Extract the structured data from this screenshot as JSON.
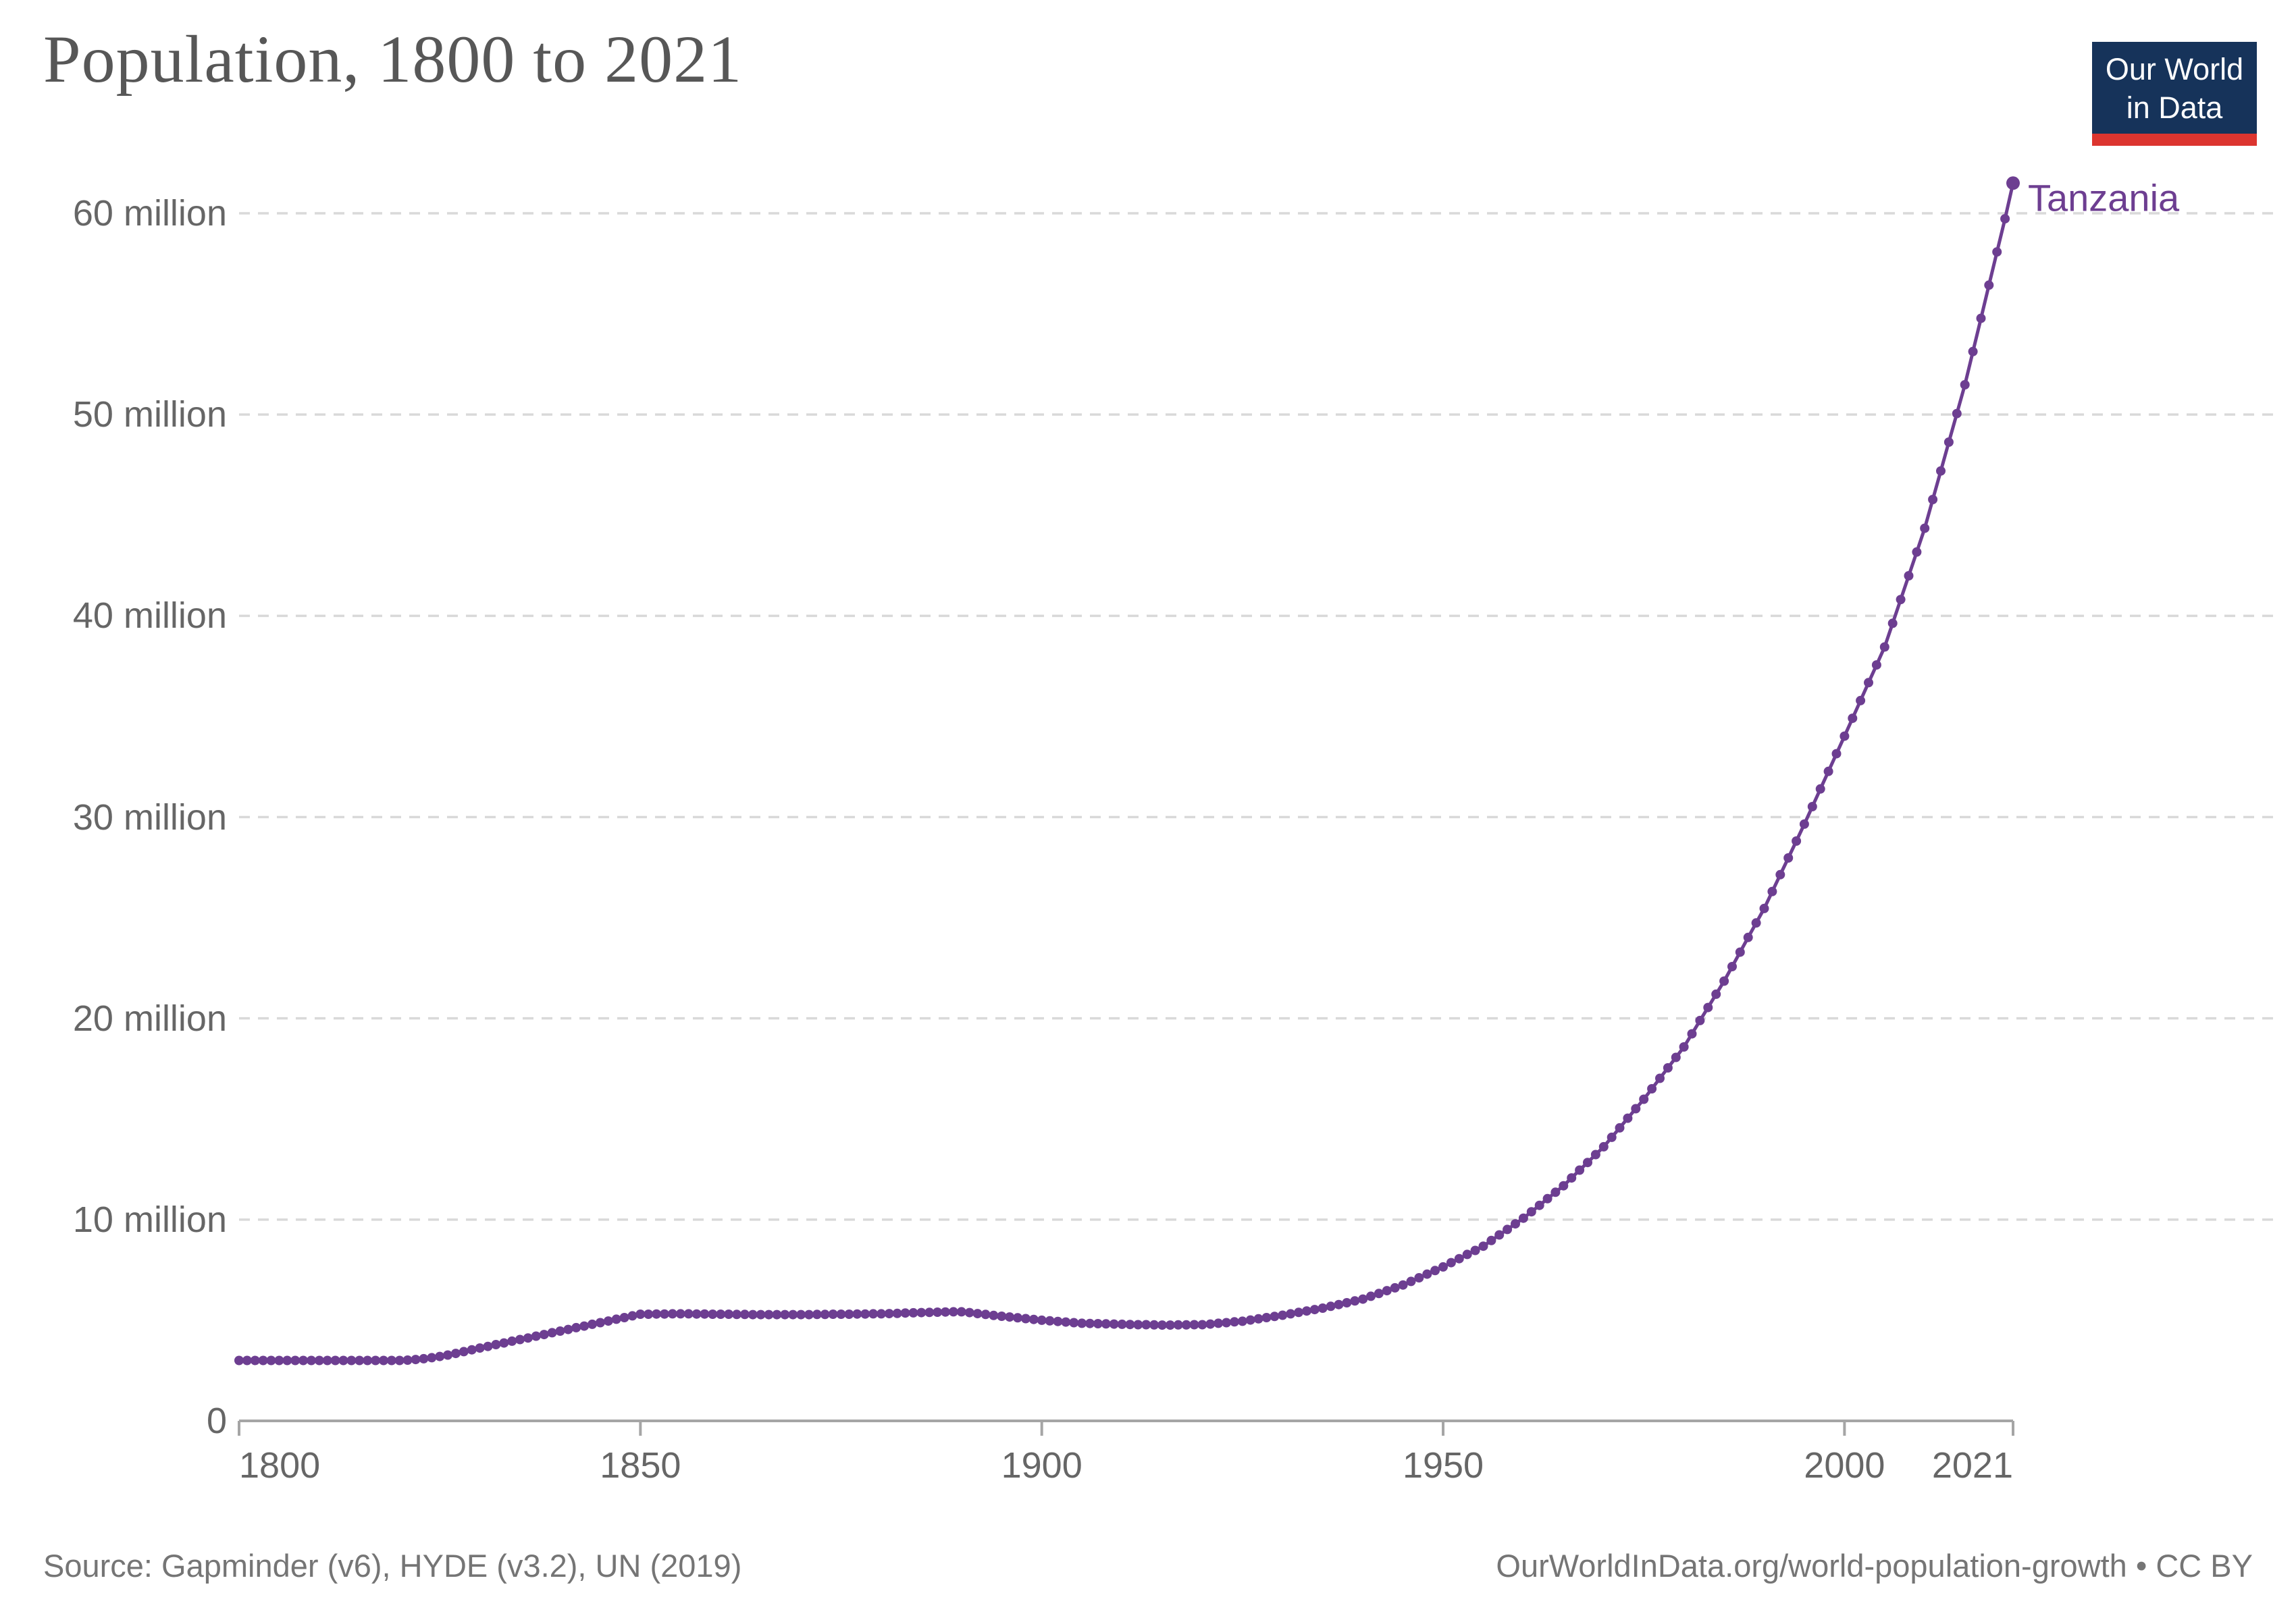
{
  "header": {
    "title": "Population, 1800 to 2021"
  },
  "logo": {
    "line1": "Our World",
    "line2": "in Data",
    "bg_color": "#16335a",
    "bar_color": "#dc352f",
    "text_color": "#ffffff"
  },
  "entity_label": {
    "text": "Tanzania",
    "color": "#6d3e91"
  },
  "footer": {
    "source": "Source: Gapminder (v6), HYDE (v3.2), UN (2019)",
    "link": "OurWorldInData.org/world-population-growth • CC BY"
  },
  "colors": {
    "line": "#6d3e91",
    "grid": "#d9d9d9",
    "axis": "#a5a5a5",
    "tick_text": "#666666",
    "title_text": "#575757",
    "footer_text": "#757575"
  },
  "chart_data": {
    "type": "line",
    "title": "Population, 1800 to 2021",
    "xlabel": "",
    "ylabel": "Population",
    "xlim": [
      1800,
      2021
    ],
    "ylim": [
      0,
      62
    ],
    "grid": "horizontal dashed",
    "legend_position": "end-of-line label",
    "x_ticks": [
      1800,
      1850,
      1900,
      1950,
      2000,
      2021
    ],
    "y_ticks": [
      {
        "value": 0,
        "label": "0"
      },
      {
        "value": 10,
        "label": "10 million"
      },
      {
        "value": 20,
        "label": "20 million"
      },
      {
        "value": 30,
        "label": "30 million"
      },
      {
        "value": 40,
        "label": "40 million"
      },
      {
        "value": 50,
        "label": "50 million"
      },
      {
        "value": 60,
        "label": "60 million"
      }
    ],
    "series": [
      {
        "name": "Tanzania",
        "color": "#6d3e91",
        "unit": "millions",
        "start_year": 1800,
        "end_year": 2021,
        "values_millions": [
          3.0,
          3.0,
          3.0,
          3.0,
          3.0,
          3.0,
          3.0,
          3.0,
          3.0,
          3.0,
          3.0,
          3.0,
          3.0,
          3.0,
          3.0,
          3.0,
          3.0,
          3.0,
          3.0,
          3.0,
          3.0,
          3.02,
          3.05,
          3.09,
          3.14,
          3.2,
          3.27,
          3.35,
          3.44,
          3.53,
          3.62,
          3.7,
          3.79,
          3.87,
          3.96,
          4.04,
          4.12,
          4.21,
          4.29,
          4.38,
          4.46,
          4.54,
          4.63,
          4.71,
          4.8,
          4.88,
          4.96,
          5.05,
          5.13,
          5.22,
          5.3,
          5.3,
          5.31,
          5.31,
          5.32,
          5.32,
          5.32,
          5.31,
          5.31,
          5.3,
          5.3,
          5.3,
          5.29,
          5.29,
          5.28,
          5.28,
          5.28,
          5.28,
          5.28,
          5.28,
          5.28,
          5.28,
          5.29,
          5.29,
          5.3,
          5.3,
          5.3,
          5.31,
          5.31,
          5.32,
          5.32,
          5.33,
          5.34,
          5.36,
          5.37,
          5.38,
          5.39,
          5.4,
          5.41,
          5.42,
          5.42,
          5.38,
          5.33,
          5.29,
          5.24,
          5.2,
          5.16,
          5.12,
          5.08,
          5.04,
          5.0,
          4.97,
          4.94,
          4.91,
          4.88,
          4.85,
          4.84,
          4.83,
          4.82,
          4.81,
          4.8,
          4.79,
          4.78,
          4.78,
          4.77,
          4.76,
          4.76,
          4.77,
          4.77,
          4.78,
          4.78,
          4.81,
          4.85,
          4.88,
          4.92,
          4.95,
          5.01,
          5.07,
          5.13,
          5.19,
          5.25,
          5.32,
          5.39,
          5.46,
          5.53,
          5.6,
          5.69,
          5.78,
          5.87,
          5.96,
          6.05,
          6.19,
          6.33,
          6.47,
          6.61,
          6.75,
          6.93,
          7.11,
          7.29,
          7.47,
          7.65,
          7.86,
          8.06,
          8.27,
          8.47,
          8.68,
          8.96,
          9.24,
          9.51,
          9.79,
          10.07,
          10.39,
          10.71,
          11.04,
          11.36,
          11.68,
          12.07,
          12.46,
          12.84,
          13.23,
          13.62,
          14.09,
          14.56,
          15.04,
          15.51,
          15.98,
          16.5,
          17.02,
          17.54,
          18.06,
          18.58,
          19.23,
          19.89,
          20.54,
          21.2,
          21.85,
          22.57,
          23.29,
          24.02,
          24.74,
          25.46,
          26.3,
          27.14,
          27.97,
          28.81,
          29.65,
          30.52,
          31.4,
          32.27,
          33.15,
          34.02,
          34.91,
          35.79,
          36.68,
          37.56,
          38.45,
          39.63,
          40.81,
          41.99,
          43.17,
          44.35,
          45.78,
          47.2,
          48.63,
          50.05,
          51.48,
          53.13,
          54.78,
          56.43,
          58.08,
          59.73,
          61.5
        ]
      }
    ]
  }
}
